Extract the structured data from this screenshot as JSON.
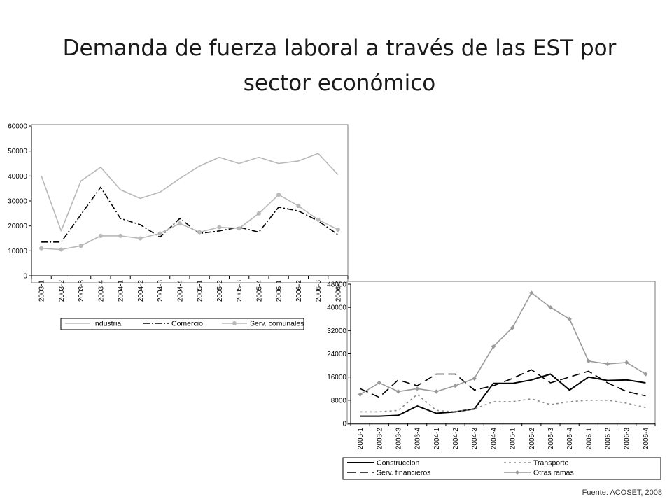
{
  "slide": {
    "title": "Demanda de fuerza laboral a través de las EST por sector económico",
    "source": "Fuente: ACOSET, 2008"
  },
  "chart_data": [
    {
      "type": "line",
      "title": "",
      "xlabel": "",
      "ylabel": "",
      "categories": [
        "2003-1",
        "2003-2",
        "2003-3",
        "2003-4",
        "2004-1",
        "2004-2",
        "2004-3",
        "2004-4",
        "2005-1",
        "2005-2",
        "2005-3",
        "2005-4",
        "2006-1",
        "2006-2",
        "2006-3",
        "2006-4"
      ],
      "ylim": [
        0,
        60000
      ],
      "yticks": [
        "0",
        "10000",
        "20000",
        "30000",
        "40000",
        "50000",
        "60000"
      ],
      "legend_position": "bottom",
      "series": [
        {
          "name": "Industria",
          "values": [
            40000,
            18000,
            38000,
            43500,
            34500,
            31000,
            33500,
            39000,
            44000,
            47500,
            45000,
            47500,
            45000,
            46000,
            49000,
            40500
          ],
          "color": "#b8b8b8",
          "style": "solid",
          "marker": "none"
        },
        {
          "name": "Comercio",
          "values": [
            13500,
            13500,
            24500,
            35500,
            23000,
            20500,
            15500,
            23000,
            17000,
            18000,
            19500,
            17500,
            27500,
            26000,
            22000,
            16500
          ],
          "color": "#000000",
          "style": "dashdot",
          "marker": "none"
        },
        {
          "name": "Serv. comunales",
          "values": [
            11000,
            10500,
            12000,
            16000,
            16000,
            15000,
            17000,
            21000,
            17500,
            19500,
            19000,
            25000,
            32500,
            28000,
            22500,
            18500
          ],
          "color": "#b8b8b8",
          "style": "solid",
          "marker": "circle"
        }
      ]
    },
    {
      "type": "line",
      "title": "",
      "xlabel": "",
      "ylabel": "",
      "categories": [
        "2003-1",
        "2003-2",
        "2003-3",
        "2003-4",
        "2004-1",
        "2004-2",
        "2004-3",
        "2004-4",
        "2005-1",
        "2005-2",
        "2005-3",
        "2005-4",
        "2006-1",
        "2006-2",
        "2006-3",
        "2006-4"
      ],
      "ylim": [
        0,
        48000
      ],
      "yticks": [
        "0",
        "8000",
        "16000",
        "24000",
        "32000",
        "40000",
        "48000"
      ],
      "legend_position": "bottom",
      "series": [
        {
          "name": "Construccion",
          "values": [
            2500,
            2500,
            2800,
            6000,
            3500,
            4000,
            5000,
            13800,
            13800,
            15000,
            17000,
            11500,
            16000,
            14800,
            15000,
            14000
          ],
          "color": "#000000",
          "style": "solid",
          "marker": "none"
        },
        {
          "name": "Transporte",
          "values": [
            4000,
            4000,
            4500,
            10000,
            4500,
            4000,
            5000,
            7500,
            7500,
            8500,
            6500,
            7500,
            8000,
            8000,
            7000,
            5500
          ],
          "color": "#8a8a8a",
          "style": "dotted",
          "marker": "none"
        },
        {
          "name": "Serv. financieros",
          "values": [
            12000,
            9000,
            15000,
            13000,
            17000,
            17000,
            11500,
            13000,
            15500,
            18500,
            14000,
            16000,
            18000,
            14000,
            11000,
            9500
          ],
          "color": "#000000",
          "style": "dashed",
          "marker": "none"
        },
        {
          "name": "Otras ramas",
          "values": [
            10000,
            14000,
            11000,
            12000,
            11000,
            13000,
            15500,
            26500,
            33000,
            45000,
            40000,
            36000,
            21500,
            20500,
            21000,
            17000
          ],
          "color": "#9a9a9a",
          "style": "solid",
          "marker": "diamond"
        }
      ]
    }
  ]
}
